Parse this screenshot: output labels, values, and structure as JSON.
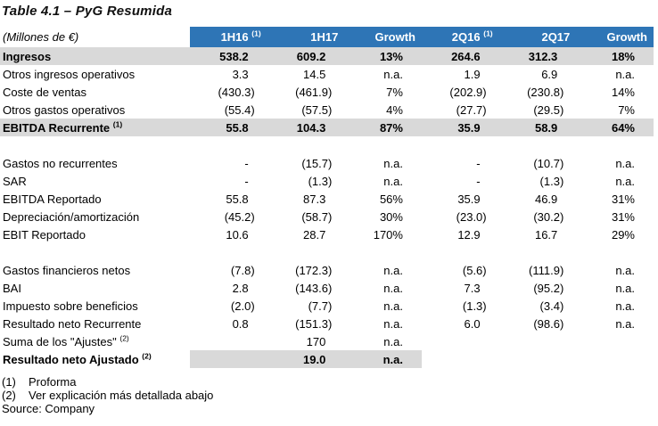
{
  "title": "Table 4.1 – PyG Resumida",
  "table": {
    "unit_label": "(Millones de €)",
    "header_bg": "#2E75B6",
    "shade_bg": "#D9D9D9",
    "columns": [
      {
        "label": "1H16",
        "sup": "(1)"
      },
      {
        "label": "1H17",
        "sup": ""
      },
      {
        "label": "Growth",
        "sup": ""
      },
      {
        "label": "2Q16",
        "sup": "(1)"
      },
      {
        "label": "2Q17",
        "sup": ""
      },
      {
        "label": "Growth",
        "sup": ""
      }
    ],
    "rows": [
      {
        "label": "Ingresos",
        "sup": "",
        "bold": true,
        "shade": "full",
        "values": [
          "538.2",
          "609.2",
          "13%",
          "264.6",
          "312.3",
          "18%"
        ]
      },
      {
        "label": "Otros ingresos operativos",
        "sup": "",
        "values": [
          "3.3",
          "14.5",
          "n.a.",
          "1.9",
          "6.9",
          "n.a."
        ]
      },
      {
        "label": "Coste de ventas",
        "sup": "",
        "values": [
          "(430.3)",
          "(461.9)",
          "7%",
          "(202.9)",
          "(230.8)",
          "14%"
        ]
      },
      {
        "label": "Otros gastos operativos",
        "sup": "",
        "values": [
          "(55.4)",
          "(57.5)",
          "4%",
          "(27.7)",
          "(29.5)",
          "7%"
        ]
      },
      {
        "label": "EBITDA Recurrente",
        "sup": "(1)",
        "bold": true,
        "shade": "full",
        "values": [
          "55.8",
          "104.3",
          "87%",
          "35.9",
          "58.9",
          "64%"
        ]
      },
      {
        "blank": true
      },
      {
        "label": "Gastos no recurrentes",
        "sup": "",
        "values": [
          "-",
          "(15.7)",
          "n.a.",
          "-",
          "(10.7)",
          "n.a."
        ]
      },
      {
        "label": "SAR",
        "sup": "",
        "values": [
          "-",
          "(1.3)",
          "n.a.",
          "-",
          "(1.3)",
          "n.a."
        ]
      },
      {
        "label": "EBITDA Reportado",
        "sup": "",
        "values": [
          "55.8",
          "87.3",
          "56%",
          "35.9",
          "46.9",
          "31%"
        ]
      },
      {
        "label": "Depreciación/amortización",
        "sup": "",
        "values": [
          "(45.2)",
          "(58.7)",
          "30%",
          "(23.0)",
          "(30.2)",
          "31%"
        ]
      },
      {
        "label": "EBIT Reportado",
        "sup": "",
        "values": [
          "10.6",
          "28.7",
          "170%",
          "12.9",
          "16.7",
          "29%"
        ]
      },
      {
        "blank": true
      },
      {
        "label": "Gastos financieros netos",
        "sup": "",
        "values": [
          "(7.8)",
          "(172.3)",
          "n.a.",
          "(5.6)",
          "(111.9)",
          "n.a."
        ]
      },
      {
        "label": "BAI",
        "sup": "",
        "values": [
          "2.8",
          "(143.6)",
          "n.a.",
          "7.3",
          "(95.2)",
          "n.a."
        ]
      },
      {
        "label": "Impuesto sobre beneficios",
        "sup": "",
        "values": [
          "(2.0)",
          "(7.7)",
          "n.a.",
          "(1.3)",
          "(3.4)",
          "n.a."
        ]
      },
      {
        "label": "Resultado neto Recurrente",
        "sup": "",
        "values": [
          "0.8",
          "(151.3)",
          "n.a.",
          "6.0",
          "(98.6)",
          "n.a."
        ]
      },
      {
        "label": "Suma de los \"Ajustes\"",
        "sup": "(2)",
        "values": [
          "",
          "170",
          "n.a.",
          "",
          "",
          ""
        ]
      },
      {
        "label": "Resultado neto Ajustado",
        "sup": "(2)",
        "bold": true,
        "shade": "partial3",
        "values": [
          "",
          "19.0",
          "n.a.",
          "",
          "",
          ""
        ]
      }
    ]
  },
  "footnotes": [
    {
      "marker": "(1)",
      "text": "Proforma"
    },
    {
      "marker": "(2)",
      "text": "Ver explicación más detallada abajo"
    }
  ],
  "source": "Source: Company"
}
